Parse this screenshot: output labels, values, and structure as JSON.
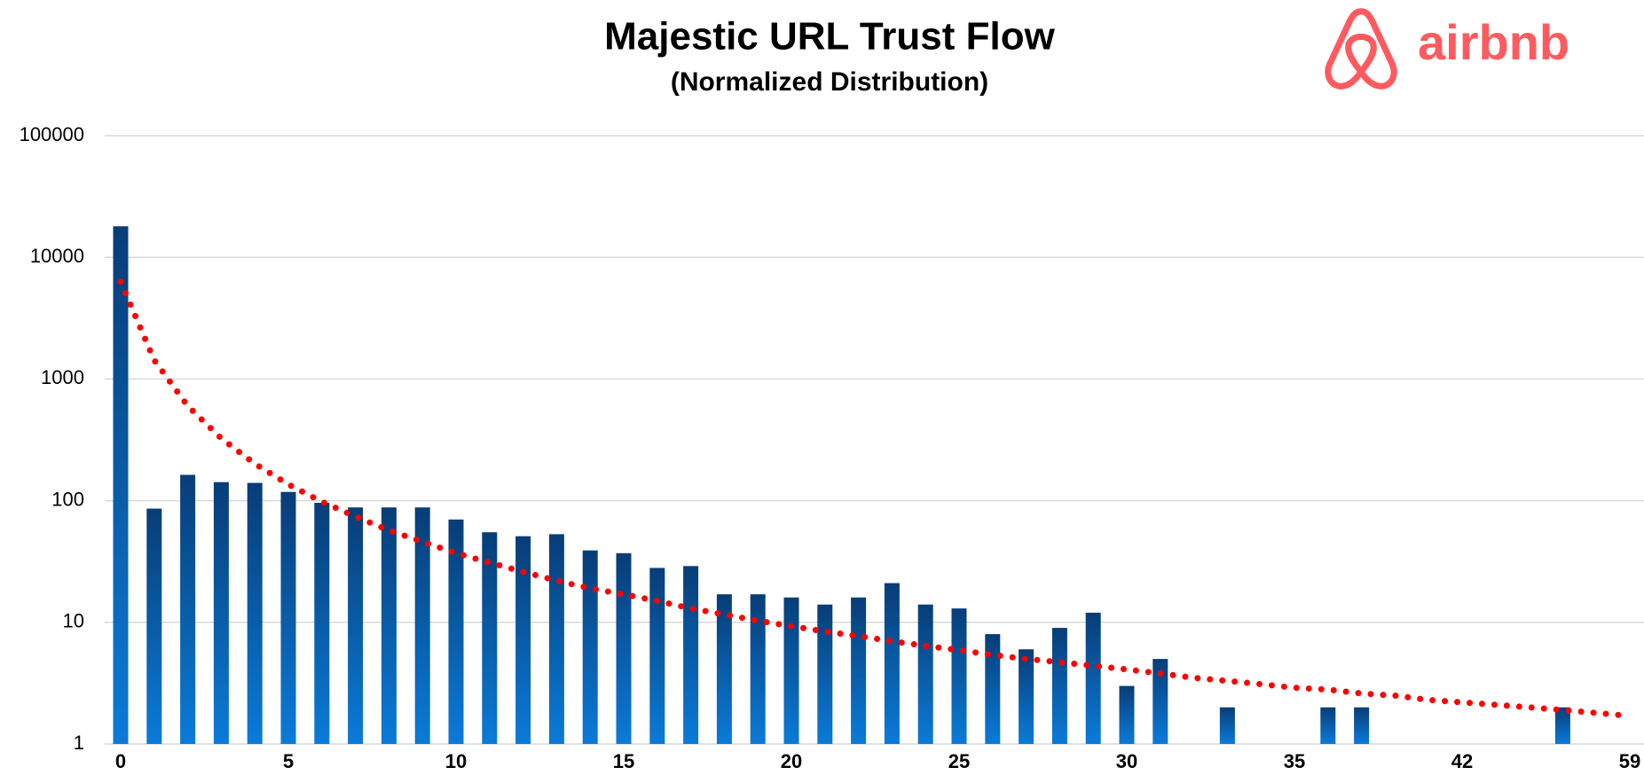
{
  "chart_data": {
    "type": "bar",
    "title": "Majestic URL Trust Flow",
    "subtitle": "(Normalized Distribution)",
    "brand": "airbnb",
    "categories": [
      "0",
      null,
      null,
      null,
      null,
      "5",
      null,
      null,
      null,
      null,
      "10",
      null,
      null,
      null,
      null,
      "15",
      null,
      null,
      null,
      null,
      "20",
      null,
      null,
      null,
      null,
      "25",
      null,
      null,
      null,
      null,
      "30",
      null,
      null,
      null,
      null,
      "35",
      null,
      null,
      null,
      null,
      "42",
      null,
      null,
      null,
      null,
      "59"
    ],
    "values": [
      18000,
      86,
      163,
      142,
      140,
      118,
      96,
      88,
      88,
      88,
      70,
      55,
      51,
      53,
      39,
      37,
      28,
      29,
      17,
      17,
      16,
      14,
      16,
      21,
      14,
      13,
      8,
      6,
      9,
      12,
      3,
      5,
      null,
      2,
      null,
      null,
      2,
      2,
      null,
      null,
      null,
      null,
      null,
      2,
      null,
      null
    ],
    "colors": [
      "#083d77",
      "#0a7bd8"
    ],
    "trendline": {
      "color": "#ff0000",
      "values": [
        6300,
        1429,
        600,
        325,
        201,
        136,
        98,
        74,
        57,
        46,
        37,
        31,
        26,
        22,
        19,
        17,
        15,
        13,
        11.6,
        10.3,
        9.3,
        8.4,
        7.7,
        7.0,
        6.4,
        5.9,
        5.4,
        5.0,
        4.7,
        4.4,
        4.1,
        3.8,
        3.5,
        3.3,
        3.1,
        2.9,
        2.8,
        2.6,
        2.5,
        2.3,
        2.2,
        2.1,
        2.0,
        1.9,
        1.8,
        1.7
      ]
    },
    "log_scale": true,
    "ylim": [
      1,
      100000
    ],
    "yticks": [
      1,
      10,
      100,
      1000,
      10000,
      100000
    ],
    "grid": true
  }
}
